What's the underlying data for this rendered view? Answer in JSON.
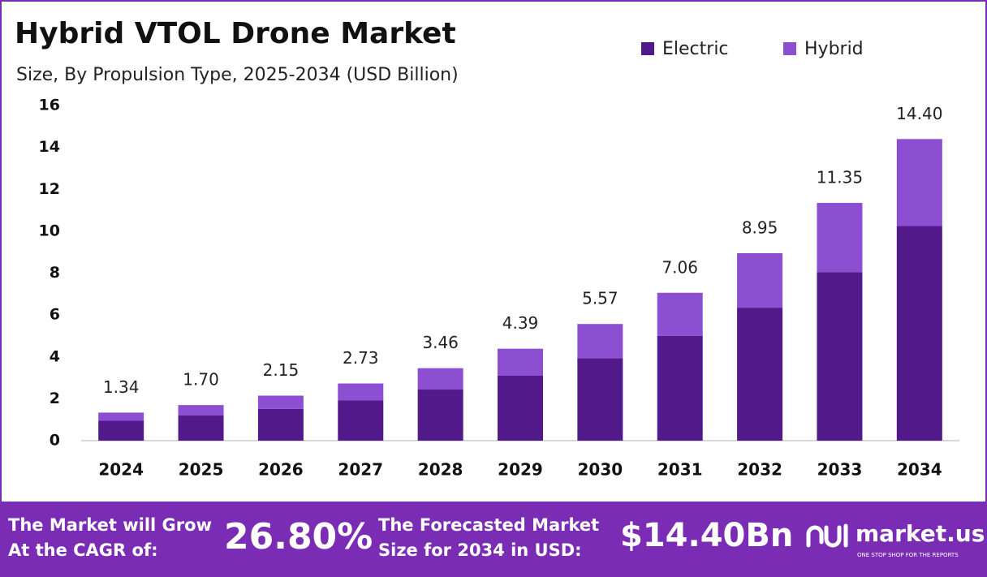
{
  "chart_data": {
    "type": "stacked-bar",
    "title": "Hybrid VTOL Drone Market",
    "subtitle": "Size, By Propulsion Type, 2025-2034 (USD Billion)",
    "categories": [
      "2024",
      "2025",
      "2026",
      "2027",
      "2028",
      "2029",
      "2030",
      "2031",
      "2032",
      "2033",
      "2034"
    ],
    "series": [
      {
        "name": "Electric",
        "color": "#52198a",
        "values": [
          0.95,
          1.2,
          1.52,
          1.93,
          2.44,
          3.1,
          3.94,
          5.0,
          6.35,
          8.05,
          10.25
        ]
      },
      {
        "name": "Hybrid",
        "color": "#8c4fd1",
        "values": [
          0.39,
          0.5,
          0.63,
          0.8,
          1.02,
          1.29,
          1.63,
          2.06,
          2.6,
          3.3,
          4.15
        ]
      }
    ],
    "totals": {
      "values": [
        1.34,
        1.7,
        2.15,
        2.73,
        3.46,
        4.39,
        5.57,
        7.06,
        8.95,
        11.35,
        14.4
      ],
      "value_labels": [
        "1.34",
        "1.70",
        "2.15",
        "2.73",
        "3.46",
        "4.39",
        "5.57",
        "7.06",
        "8.95",
        "11.35",
        "14.40"
      ]
    },
    "ylim": [
      0,
      16
    ],
    "yticks": [
      0,
      2,
      4,
      6,
      8,
      10,
      12,
      14,
      16
    ],
    "grid": false,
    "legend": "top-right"
  },
  "footer": {
    "cagr_text": [
      "The Market will Grow",
      "At the CAGR of:"
    ],
    "cagr_value": "26.80%",
    "forecast_text": [
      "The Forecasted Market",
      "Size for 2034 in USD:"
    ],
    "forecast_value": "$14.40Bn",
    "brand": "market.us",
    "tagline": "ONE STOP SHOP FOR THE REPORTS"
  }
}
